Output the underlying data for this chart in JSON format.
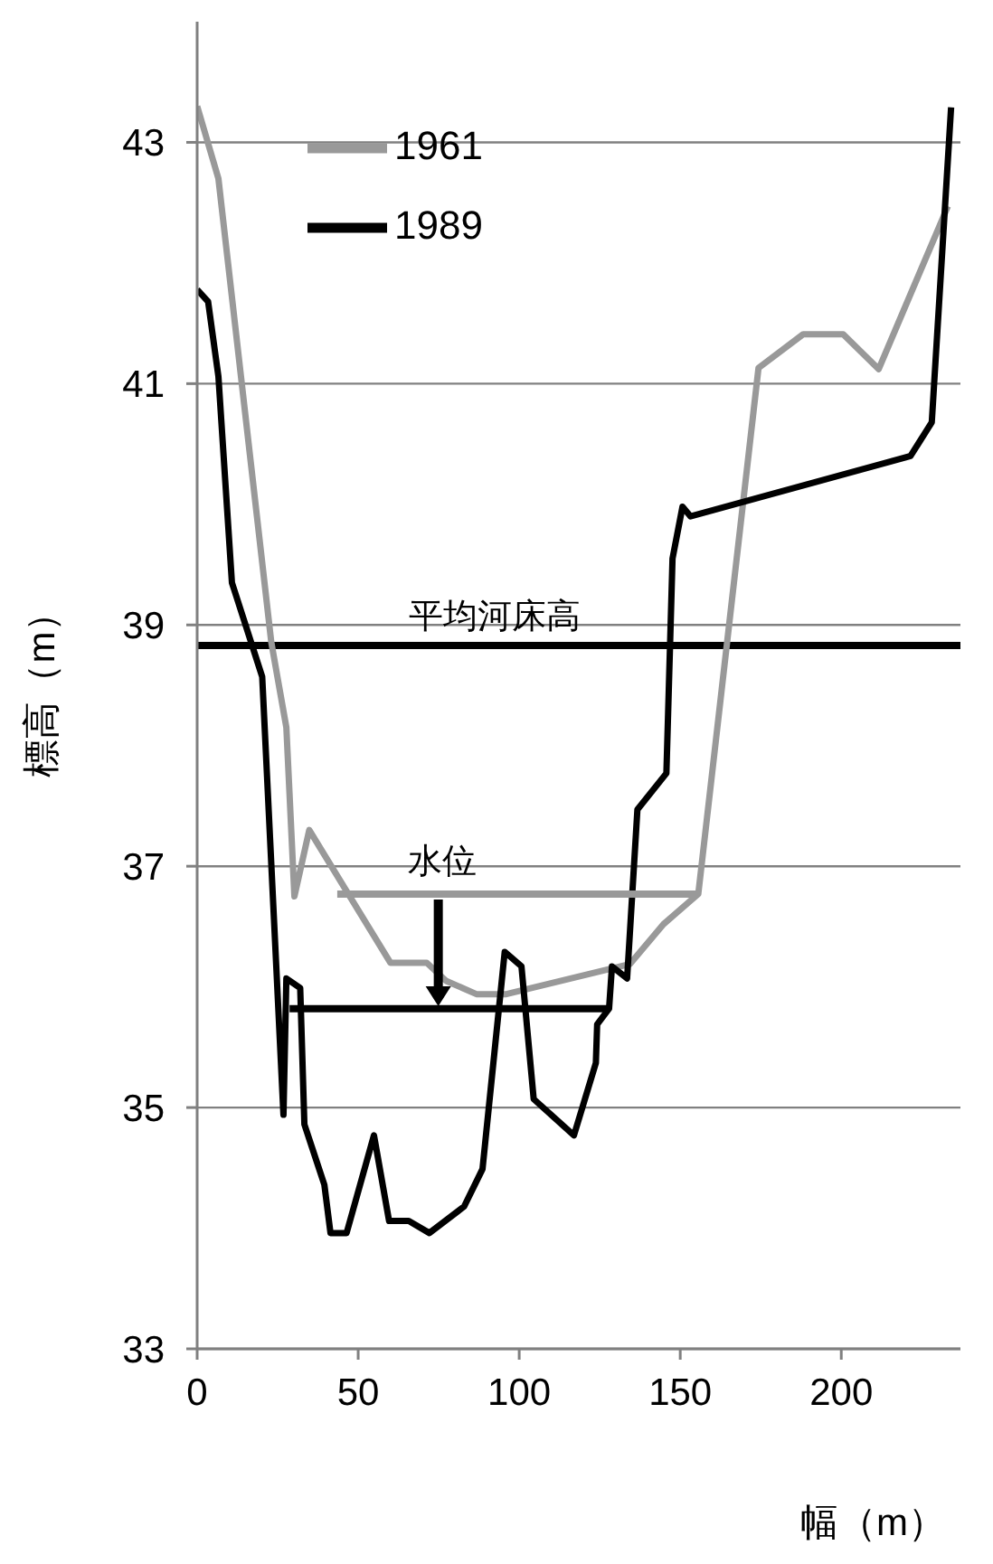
{
  "chart_data": {
    "type": "line",
    "xlabel": "幅（m）",
    "ylabel": "標高（m）",
    "xlim": [
      0,
      237
    ],
    "xticks": [
      0,
      50,
      100,
      150,
      200
    ],
    "ylim": [
      33,
      44
    ],
    "yticks": [
      33,
      35,
      37,
      39,
      41,
      43
    ],
    "grid": "y",
    "legend": "top left",
    "marker": "none",
    "line_style": "solid",
    "series": [
      {
        "name": "1961",
        "color": "#999999",
        "x": [
          0,
          6.6,
          23,
          27.7,
          30.2,
          34.8,
          60,
          71.3,
          77.3,
          86.7,
          96,
          134.4,
          144.8,
          155.6,
          174.3,
          188.2,
          200.6,
          211.6,
          233.1
        ],
        "values": [
          43.3,
          42.7,
          38.86,
          38.15,
          36.75,
          37.3,
          36.2,
          36.2,
          36.05,
          35.94,
          35.94,
          36.19,
          36.52,
          36.77,
          41.13,
          41.41,
          41.41,
          41.12,
          42.47
        ]
      },
      {
        "name": "1989",
        "color": "#000000",
        "x": [
          0,
          3.4,
          6.6,
          10.8,
          20.2,
          26.8,
          27.7,
          32,
          33.3,
          39.5,
          41.4,
          46.4,
          54.9,
          59.6,
          65.7,
          72.1,
          82.9,
          88.6,
          95.5,
          100.7,
          104.5,
          117,
          123.8,
          124.2,
          127.9,
          128.8,
          133.5,
          136.7,
          145.7,
          147.6,
          150.7,
          153.2,
          221.5,
          228.1,
          234.1
        ],
        "values": [
          41.78,
          41.68,
          41.06,
          39.35,
          38.57,
          34.94,
          36.07,
          35.99,
          34.86,
          34.36,
          33.96,
          33.96,
          34.77,
          34.06,
          34.06,
          33.96,
          34.18,
          34.49,
          36.29,
          36.17,
          35.07,
          34.77,
          35.37,
          35.69,
          35.82,
          36.17,
          36.07,
          37.47,
          37.77,
          39.55,
          39.98,
          39.9,
          40.4,
          40.68,
          43.29
        ]
      },
      {
        "color": "#999999",
        "x": [
          43.5,
          155.6
        ],
        "values": [
          36.77,
          36.77
        ]
      },
      {
        "color": "#000000",
        "x": [
          28.7,
          127.9
        ],
        "values": [
          35.82,
          35.82
        ]
      }
    ],
    "ref_lines": [
      {
        "axis": "y",
        "value": 38.83,
        "label": "平均河床高",
        "color": "#000000"
      }
    ],
    "annotations": [
      {
        "text": "水位",
        "x": 76,
        "y": 36.77
      }
    ]
  }
}
